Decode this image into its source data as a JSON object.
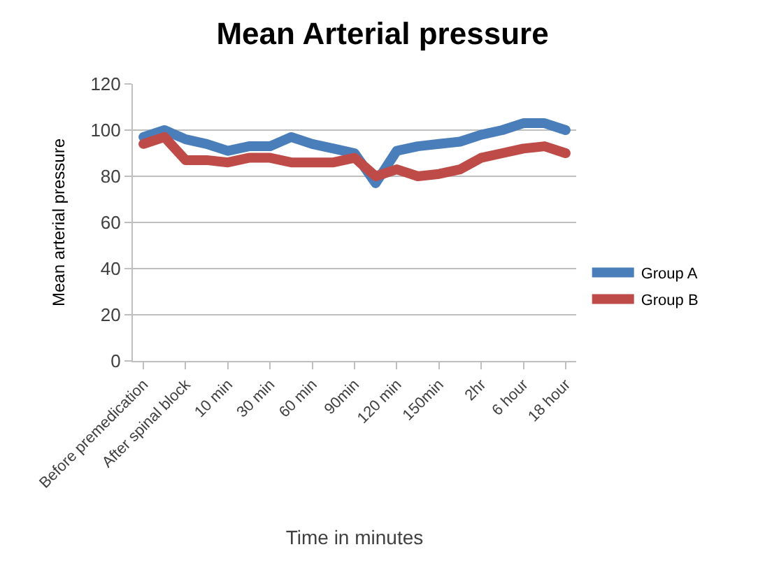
{
  "chart_data": {
    "type": "line",
    "title": "Mean Arterial pressure",
    "xlabel": "Time in minutes",
    "ylabel": "Mean arterial pressure",
    "categories": [
      "Before premedication",
      null,
      "After spinal block",
      null,
      "10 min",
      null,
      "30 min",
      null,
      "60 min",
      null,
      "90min",
      null,
      "120 min",
      null,
      "150min",
      null,
      "2hr",
      null,
      "6 hour",
      null,
      "18 hour"
    ],
    "series": [
      {
        "name": "Group A",
        "color": "#4a7ebb",
        "values": [
          97,
          100,
          96,
          94,
          91,
          93,
          93,
          97,
          94,
          92,
          90,
          77,
          91,
          93,
          94,
          95,
          98,
          100,
          103,
          103,
          100
        ]
      },
      {
        "name": "Group B",
        "color": "#be4b48",
        "values": [
          94,
          97,
          87,
          87,
          86,
          88,
          88,
          86,
          86,
          86,
          88,
          80,
          83,
          80,
          81,
          83,
          88,
          90,
          92,
          93,
          90
        ]
      }
    ],
    "ylim": [
      0,
      120
    ],
    "yticks": [
      0,
      20,
      40,
      60,
      80,
      100,
      120
    ],
    "grid": "y",
    "legend": "right",
    "line_style": "solid"
  }
}
